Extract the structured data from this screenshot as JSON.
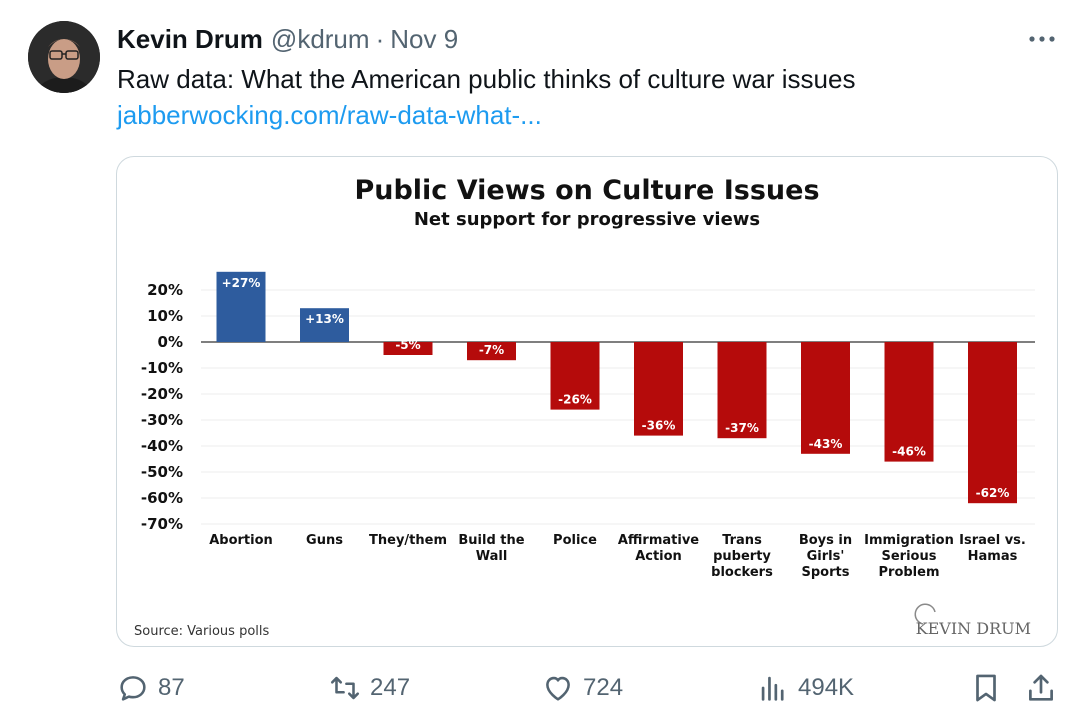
{
  "tweet": {
    "author_name": "Kevin Drum",
    "handle": "@kdrum",
    "separator": "·",
    "date": "Nov 9",
    "text": "Raw data: What the American public thinks of culture war issues",
    "link_text": "jabberwocking.com/raw-data-what-..."
  },
  "chart_data": {
    "type": "bar",
    "title": "Public Views on Culture Issues",
    "subtitle": "Net support for progressive views",
    "categories": [
      [
        "Abortion"
      ],
      [
        "Guns"
      ],
      [
        "They/them"
      ],
      [
        "Build the",
        "Wall"
      ],
      [
        "Police"
      ],
      [
        "Affirmative",
        "Action"
      ],
      [
        "Trans",
        "puberty",
        "blockers"
      ],
      [
        "Boys in",
        "Girls'",
        "Sports"
      ],
      [
        "Immigration",
        "Serious",
        "Problem"
      ],
      [
        "Israel vs.",
        "Hamas"
      ]
    ],
    "values": [
      27,
      13,
      -5,
      -7,
      -26,
      -36,
      -37,
      -43,
      -46,
      -62
    ],
    "data_labels": [
      "+27%",
      "+13%",
      "-5%",
      "-7%",
      "-26%",
      "-36%",
      "-37%",
      "-43%",
      "-46%",
      "-62%"
    ],
    "y_ticks": [
      20,
      10,
      0,
      -10,
      -20,
      -30,
      -40,
      -50,
      -60,
      -70
    ],
    "y_tick_labels": [
      "20%",
      "10%",
      "0%",
      "-10%",
      "-20%",
      "-30%",
      "-40%",
      "-50%",
      "-60%",
      "-70%"
    ],
    "ylim": [
      -70,
      27
    ],
    "positive_color": "#2e5c9e",
    "negative_color": "#b50b0b",
    "grid": true,
    "source": "Source: Various polls",
    "watermark": "KEVIN DRUM"
  },
  "actions": {
    "replies": "87",
    "reposts": "247",
    "likes": "724",
    "views": "494K"
  }
}
